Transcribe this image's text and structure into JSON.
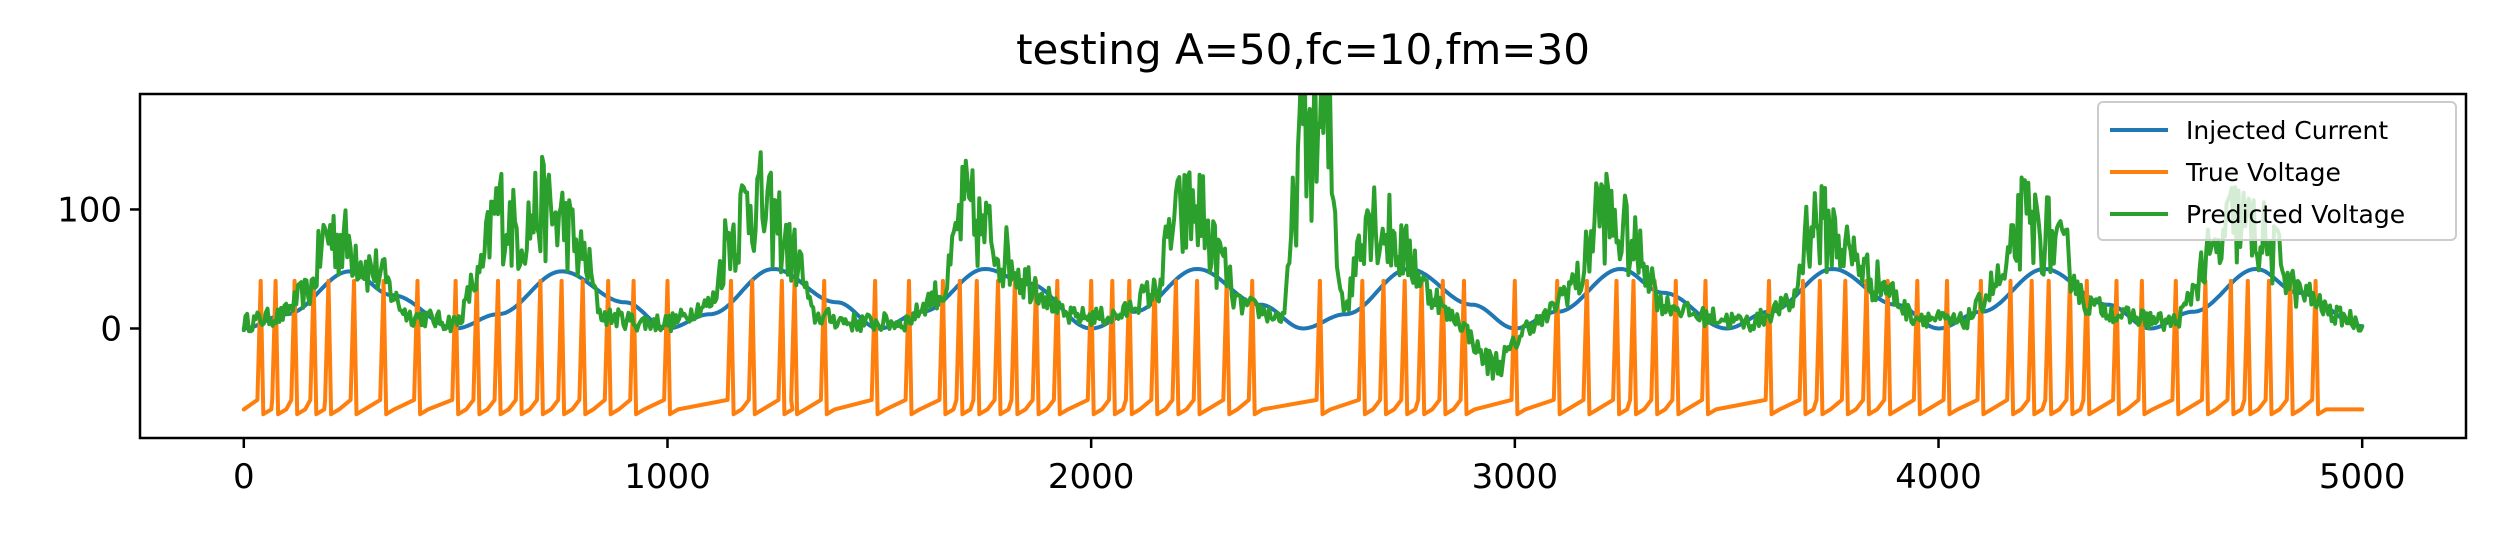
{
  "chart_data": {
    "type": "line",
    "title": "testing A=50,fc=10,fm=30",
    "xlabel": "",
    "ylabel": "",
    "xlim": [
      -245,
      5245
    ],
    "ylim": [
      -92,
      197
    ],
    "x_ticks": [
      0,
      1000,
      2000,
      3000,
      4000,
      5000
    ],
    "x_tick_labels": [
      "0",
      "1000",
      "2000",
      "3000",
      "4000",
      "5000"
    ],
    "y_ticks": [
      0,
      100
    ],
    "y_tick_labels": [
      "0",
      "100"
    ],
    "grid": false,
    "legend_position": "upper-right",
    "colors": {
      "injected": "#1f77b4",
      "true_voltage": "#ff7f0e",
      "predicted": "#2ca02c"
    },
    "series": [
      {
        "name": "Injected Current",
        "color": "#1f77b4",
        "x": [
          0,
          100,
          250,
          350,
          500,
          600,
          750,
          900,
          1000,
          1100,
          1250,
          1400,
          1500,
          1600,
          1750,
          1850,
          2000,
          2100,
          2250,
          2400,
          2500,
          2600,
          2750,
          2900,
          3000,
          3100,
          3250,
          3350,
          3500,
          3600,
          3750,
          3900,
          4000,
          4100,
          4250,
          4400,
          4500,
          4600,
          4750,
          4850,
          5000
        ],
        "y": [
          0,
          12,
          48,
          28,
          0,
          12,
          48,
          22,
          0,
          12,
          50,
          22,
          0,
          14,
          50,
          38,
          0,
          14,
          50,
          20,
          0,
          12,
          50,
          20,
          0,
          14,
          50,
          30,
          0,
          14,
          50,
          20,
          0,
          14,
          50,
          20,
          0,
          14,
          50,
          30,
          2
        ]
      },
      {
        "name": "True Voltage",
        "color": "#ff7f0e",
        "pattern": "periodic spikes from about -70 to about +40",
        "spike_times": [
          40,
          75,
          120,
          165,
          200,
          260,
          330,
          410,
          500,
          550,
          600,
          650,
          700,
          750,
          800,
          860,
          920,
          1000,
          1150,
          1200,
          1270,
          1300,
          1370,
          1490,
          1570,
          1650,
          1690,
          1730,
          1780,
          1820,
          1870,
          1920,
          2000,
          2050,
          2090,
          2150,
          2200,
          2250,
          2320,
          2380,
          2540,
          2640,
          2690,
          2740,
          2780,
          2830,
          2880,
          3000,
          3100,
          3170,
          3240,
          3280,
          3330,
          3380,
          3450,
          3600,
          3680,
          3720,
          3780,
          3830,
          3880,
          3950,
          4020,
          4100,
          4170,
          4220,
          4260,
          4310,
          4350,
          4420,
          4480,
          4560,
          4630,
          4690,
          4730,
          4780,
          4830,
          4890
        ],
        "baseline": -68,
        "peak": 40
      },
      {
        "name": "Predicted Voltage",
        "color": "#2ca02c",
        "pattern": "noisy bursts aligned with current peaks",
        "x": [
          0,
          80,
          150,
          200,
          250,
          300,
          400,
          500,
          550,
          600,
          650,
          700,
          750,
          800,
          850,
          950,
          1000,
          1100,
          1150,
          1200,
          1250,
          1300,
          1350,
          1450,
          1550,
          1650,
          1700,
          1750,
          1800,
          1850,
          1950,
          2050,
          2150,
          2200,
          2250,
          2300,
          2350,
          2450,
          2500,
          2550,
          2600,
          2650,
          2700,
          2750,
          2800,
          2850,
          2950,
          3050,
          3150,
          3200,
          3250,
          3300,
          3350,
          3450,
          3550,
          3650,
          3700,
          3750,
          3800,
          3850,
          3950,
          4050,
          4150,
          4200,
          4250,
          4300,
          4350,
          4450,
          4550,
          4650,
          4700,
          4750,
          4800,
          4850,
          4950,
          5000
        ],
        "y": [
          5,
          10,
          30,
          80,
          70,
          50,
          10,
          5,
          40,
          100,
          80,
          100,
          90,
          60,
          10,
          5,
          5,
          20,
          80,
          110,
          90,
          60,
          10,
          5,
          5,
          30,
          100,
          80,
          60,
          40,
          10,
          10,
          30,
          90,
          100,
          60,
          20,
          10,
          160,
          170,
          20,
          100,
          80,
          60,
          30,
          10,
          -30,
          5,
          40,
          100,
          80,
          60,
          20,
          10,
          5,
          20,
          90,
          80,
          60,
          40,
          10,
          5,
          40,
          90,
          80,
          60,
          20,
          10,
          5,
          60,
          90,
          80,
          60,
          30,
          10,
          5
        ]
      }
    ]
  }
}
